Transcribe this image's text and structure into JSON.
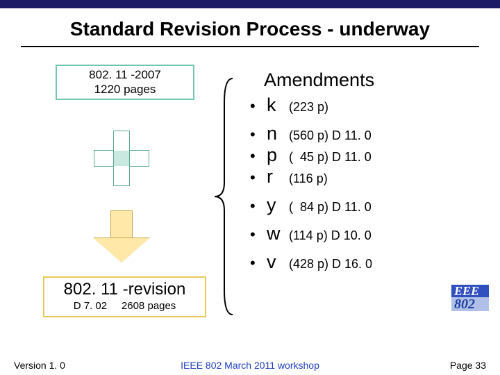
{
  "colors": {
    "top_bar": "#1a1a66",
    "box2007_border": "#70c8b0",
    "plus_fill": "#c8e8e0",
    "plus_border": "#5aa890",
    "arrow_fill": "#ffe8a8",
    "arrow_border": "#c0a850",
    "boxrev_border": "#e8c858",
    "logo_top_bg": "#3050c0",
    "logo_bot_bg": "#b0c0e8",
    "logo_bot_text": "#2040a0",
    "footer_mid": "#2040c0"
  },
  "title": "Standard Revision Process - underway",
  "box2007": {
    "line1": "802. 11 -2007",
    "line2": "1220 pages"
  },
  "boxrev": {
    "big": "802. 11 -revision",
    "small_left": "D 7. 02",
    "small_right": "2608 pages"
  },
  "amend_title": "Amendments",
  "amendments": [
    {
      "letter": "k",
      "detail": "(223 p)"
    },
    {
      "letter": "n",
      "detail": "(560 p) D 11. 0"
    },
    {
      "letter": "p",
      "detail": "(  45 p) D 11. 0"
    },
    {
      "letter": "r",
      "detail": "(116 p)"
    },
    {
      "letter": "y",
      "detail": "(  84 p) D 11. 0"
    },
    {
      "letter": "w",
      "detail": "(114 p) D 10. 0"
    },
    {
      "letter": "v",
      "detail": "(428 p) D 16. 0"
    }
  ],
  "amend_gaps_after": [
    0,
    3,
    4,
    5
  ],
  "logo": {
    "top": "EEE",
    "bot": "802"
  },
  "footer": {
    "left": "Version 1. 0",
    "mid": "IEEE 802 March 2011 workshop",
    "right": "Page 33"
  }
}
